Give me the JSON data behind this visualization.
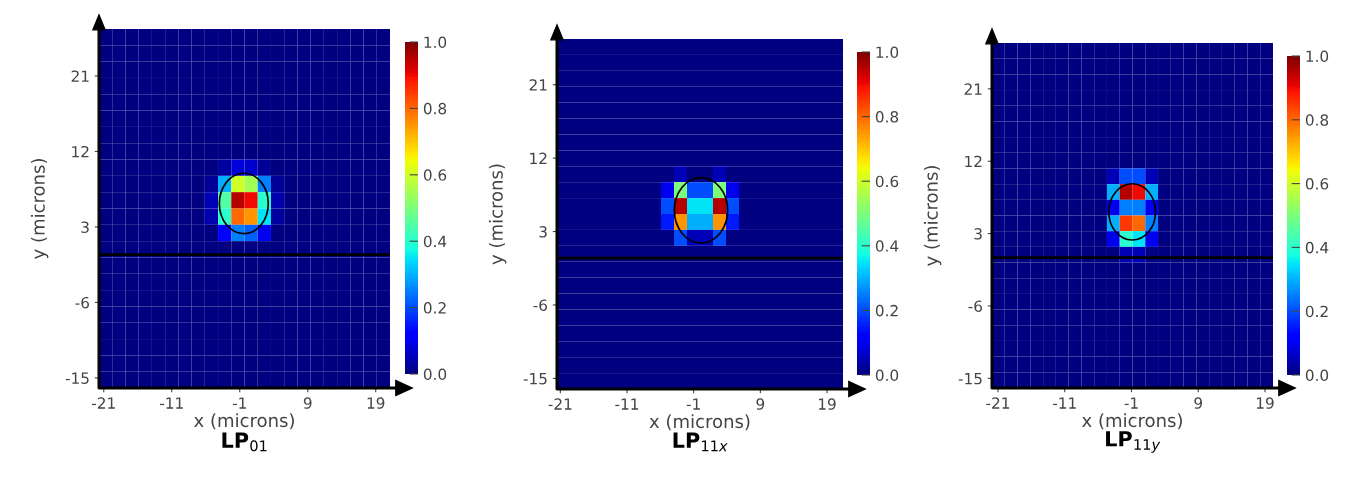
{
  "chart_data": [
    {
      "type": "heatmap",
      "title": "LP$_{01}$",
      "xlabel": "x (microns)",
      "ylabel": "y (microns)",
      "xlim": [
        -21.7,
        21.1
      ],
      "ylim": [
        -16.2,
        26.6
      ],
      "xticks": [
        -21,
        -11,
        -1,
        9,
        19
      ],
      "yticks": [
        -15,
        -6,
        3,
        12,
        21
      ],
      "clim": [
        0,
        1
      ],
      "cticks": [
        {
          "value": 0,
          "label": "0.0"
        },
        {
          "value": 0.2,
          "label": "0.2"
        },
        {
          "value": 0.4,
          "label": "0.4"
        },
        {
          "value": 0.6,
          "label": "0.6"
        },
        {
          "value": 0.8,
          "label": "0.8"
        },
        {
          "value": 1,
          "label": "1.0"
        }
      ],
      "ref_lines": [
        {
          "axis": "y",
          "value": -0.3,
          "color": "#000000"
        }
      ],
      "cells": [
        [
          0,
          0,
          0,
          0,
          0,
          0,
          0,
          0,
          0,
          0,
          0,
          0,
          0,
          0,
          0,
          0,
          0,
          0,
          0,
          0,
          0,
          0
        ],
        [
          0,
          0,
          0,
          0,
          0,
          0,
          0,
          0,
          0,
          0,
          0,
          0,
          0,
          0,
          0,
          0,
          0,
          0,
          0,
          0,
          0,
          0
        ],
        [
          0,
          0,
          0,
          0,
          0,
          0,
          0,
          0,
          0,
          0,
          0,
          0,
          0,
          0,
          0,
          0,
          0,
          0,
          0,
          0,
          0,
          0
        ],
        [
          0,
          0,
          0,
          0,
          0,
          0,
          0,
          0,
          0,
          0,
          0,
          0,
          0,
          0,
          0,
          0,
          0,
          0,
          0,
          0,
          0,
          0
        ],
        [
          0,
          0,
          0,
          0,
          0,
          0,
          0,
          0,
          0,
          0,
          0,
          0,
          0,
          0,
          0,
          0,
          0,
          0,
          0,
          0,
          0,
          0
        ],
        [
          0,
          0,
          0,
          0,
          0,
          0,
          0,
          0,
          0,
          0,
          0,
          0,
          0,
          0,
          0,
          0,
          0,
          0,
          0,
          0,
          0,
          0
        ],
        [
          0,
          0,
          0,
          0,
          0,
          0,
          0,
          0,
          0,
          0,
          0,
          0,
          0,
          0,
          0,
          0,
          0,
          0,
          0,
          0,
          0,
          0
        ],
        [
          0,
          0,
          0,
          0,
          0,
          0,
          0,
          0,
          0,
          0,
          0,
          0,
          0,
          0,
          0,
          0,
          0,
          0,
          0,
          0,
          0,
          0
        ],
        [
          0,
          0,
          0,
          0,
          0,
          0,
          0,
          0,
          0,
          0.03,
          0.08,
          0.07,
          0.02,
          0,
          0,
          0,
          0,
          0,
          0,
          0,
          0,
          0
        ],
        [
          0,
          0,
          0,
          0,
          0,
          0,
          0,
          0,
          0.02,
          0.3,
          0.6,
          0.55,
          0.25,
          0.02,
          0,
          0,
          0,
          0,
          0,
          0,
          0,
          0
        ],
        [
          0,
          0,
          0,
          0,
          0,
          0,
          0,
          0,
          0.05,
          0.45,
          0.95,
          0.9,
          0.4,
          0.04,
          0,
          0,
          0,
          0,
          0,
          0,
          0,
          0
        ],
        [
          0,
          0,
          0,
          0,
          0,
          0,
          0,
          0,
          0.04,
          0.4,
          0.8,
          0.75,
          0.35,
          0.03,
          0,
          0,
          0,
          0,
          0,
          0,
          0,
          0
        ],
        [
          0,
          0,
          0,
          0,
          0,
          0,
          0,
          0,
          0,
          0.12,
          0.25,
          0.22,
          0.1,
          0,
          0,
          0,
          0,
          0,
          0,
          0,
          0,
          0
        ],
        [
          0,
          0,
          0,
          0,
          0,
          0,
          0,
          0,
          0,
          0,
          0,
          0,
          0,
          0,
          0,
          0,
          0,
          0,
          0,
          0,
          0,
          0
        ],
        [
          0,
          0,
          0,
          0,
          0,
          0,
          0,
          0,
          0,
          0,
          0,
          0,
          0,
          0,
          0,
          0,
          0,
          0,
          0,
          0,
          0,
          0
        ],
        [
          0,
          0,
          0,
          0,
          0,
          0,
          0,
          0,
          0,
          0,
          0,
          0,
          0,
          0,
          0,
          0,
          0,
          0,
          0,
          0,
          0,
          0
        ],
        [
          0,
          0,
          0,
          0,
          0,
          0,
          0,
          0,
          0,
          0,
          0,
          0,
          0,
          0,
          0,
          0,
          0,
          0,
          0,
          0,
          0,
          0
        ],
        [
          0,
          0,
          0,
          0,
          0,
          0,
          0,
          0,
          0,
          0,
          0,
          0,
          0,
          0,
          0,
          0,
          0,
          0,
          0,
          0,
          0,
          0
        ],
        [
          0,
          0,
          0,
          0,
          0,
          0,
          0,
          0,
          0,
          0,
          0,
          0,
          0,
          0,
          0,
          0,
          0,
          0,
          0,
          0,
          0,
          0
        ],
        [
          0,
          0,
          0,
          0,
          0,
          0,
          0,
          0,
          0,
          0,
          0,
          0,
          0,
          0,
          0,
          0,
          0,
          0,
          0,
          0,
          0,
          0
        ],
        [
          0,
          0,
          0,
          0,
          0,
          0,
          0,
          0,
          0,
          0,
          0,
          0,
          0,
          0,
          0,
          0,
          0,
          0,
          0,
          0,
          0,
          0
        ],
        [
          0,
          0,
          0,
          0,
          0,
          0,
          0,
          0,
          0,
          0,
          0,
          0,
          0,
          0,
          0,
          0,
          0,
          0,
          0,
          0,
          0,
          0
        ]
      ]
    },
    {
      "type": "heatmap",
      "title": "LP$_{11x}$",
      "xlabel": "x (microns)",
      "ylabel": "y (microns)",
      "xlim": [
        -21.5,
        21.4
      ],
      "ylim": [
        -16.3,
        26.6
      ],
      "xticks": [
        -21,
        -11,
        -1,
        9,
        19
      ],
      "yticks": [
        -15,
        -6,
        3,
        12,
        21
      ],
      "clim": [
        0,
        1
      ],
      "cticks": [
        {
          "value": 0,
          "label": "0.0"
        },
        {
          "value": 0.2,
          "label": "0.2"
        },
        {
          "value": 0.4,
          "label": "0.4"
        },
        {
          "value": 0.6,
          "label": "0.6"
        },
        {
          "value": 0.8,
          "label": "0.8"
        },
        {
          "value": 1,
          "label": "1.0"
        }
      ],
      "ref_lines": [
        {
          "axis": "y",
          "value": -0.25,
          "color": "#000000"
        }
      ],
      "cells": [
        [
          0,
          0,
          0,
          0,
          0,
          0,
          0,
          0,
          0,
          0,
          0,
          0,
          0,
          0,
          0,
          0,
          0,
          0,
          0,
          0,
          0,
          0
        ],
        [
          0,
          0,
          0,
          0,
          0,
          0,
          0,
          0,
          0,
          0,
          0,
          0,
          0,
          0,
          0,
          0,
          0,
          0,
          0,
          0,
          0,
          0
        ],
        [
          0,
          0,
          0,
          0,
          0,
          0,
          0,
          0,
          0,
          0,
          0,
          0,
          0,
          0,
          0,
          0,
          0,
          0,
          0,
          0,
          0,
          0
        ],
        [
          0,
          0,
          0,
          0,
          0,
          0,
          0,
          0,
          0,
          0,
          0,
          0,
          0,
          0,
          0,
          0,
          0,
          0,
          0,
          0,
          0,
          0
        ],
        [
          0,
          0,
          0,
          0,
          0,
          0,
          0,
          0,
          0,
          0,
          0,
          0,
          0,
          0,
          0,
          0,
          0,
          0,
          0,
          0,
          0,
          0
        ],
        [
          0,
          0,
          0,
          0,
          0,
          0,
          0,
          0,
          0,
          0,
          0,
          0,
          0,
          0,
          0,
          0,
          0,
          0,
          0,
          0,
          0,
          0
        ],
        [
          0,
          0,
          0,
          0,
          0,
          0,
          0,
          0,
          0,
          0,
          0,
          0,
          0,
          0,
          0,
          0,
          0,
          0,
          0,
          0,
          0,
          0
        ],
        [
          0,
          0,
          0,
          0,
          0,
          0,
          0,
          0,
          0,
          0,
          0,
          0,
          0,
          0,
          0,
          0,
          0,
          0,
          0,
          0,
          0,
          0
        ],
        [
          0,
          0,
          0,
          0,
          0,
          0,
          0,
          0,
          0,
          0.05,
          0,
          0,
          0.05,
          0,
          0,
          0,
          0,
          0,
          0,
          0,
          0,
          0
        ],
        [
          0,
          0,
          0,
          0,
          0,
          0,
          0,
          0,
          0.1,
          0.5,
          0.2,
          0.2,
          0.5,
          0.1,
          0,
          0,
          0,
          0,
          0,
          0,
          0,
          0
        ],
        [
          0,
          0,
          0,
          0,
          0,
          0,
          0,
          0,
          0.2,
          0.95,
          0.35,
          0.35,
          0.95,
          0.2,
          0,
          0,
          0,
          0,
          0,
          0,
          0,
          0
        ],
        [
          0,
          0,
          0,
          0,
          0,
          0,
          0,
          0,
          0.15,
          0.75,
          0.3,
          0.3,
          0.75,
          0.15,
          0,
          0,
          0,
          0,
          0,
          0,
          0,
          0
        ],
        [
          0,
          0,
          0,
          0,
          0,
          0,
          0,
          0,
          0,
          0.2,
          0.05,
          0.05,
          0.2,
          0,
          0,
          0,
          0,
          0,
          0,
          0,
          0,
          0
        ],
        [
          0,
          0,
          0,
          0,
          0,
          0,
          0,
          0,
          0,
          0,
          0,
          0,
          0,
          0,
          0,
          0,
          0,
          0,
          0,
          0,
          0,
          0
        ],
        [
          0,
          0,
          0,
          0,
          0,
          0,
          0,
          0,
          0,
          0,
          0,
          0,
          0,
          0,
          0,
          0,
          0,
          0,
          0,
          0,
          0,
          0
        ],
        [
          0,
          0,
          0,
          0,
          0,
          0,
          0,
          0,
          0,
          0,
          0,
          0,
          0,
          0,
          0,
          0,
          0,
          0,
          0,
          0,
          0,
          0
        ],
        [
          0,
          0,
          0,
          0,
          0,
          0,
          0,
          0,
          0,
          0,
          0,
          0,
          0,
          0,
          0,
          0,
          0,
          0,
          0,
          0,
          0,
          0
        ],
        [
          0,
          0,
          0,
          0,
          0,
          0,
          0,
          0,
          0,
          0,
          0,
          0,
          0,
          0,
          0,
          0,
          0,
          0,
          0,
          0,
          0,
          0
        ],
        [
          0,
          0,
          0,
          0,
          0,
          0,
          0,
          0,
          0,
          0,
          0,
          0,
          0,
          0,
          0,
          0,
          0,
          0,
          0,
          0,
          0,
          0
        ],
        [
          0,
          0,
          0,
          0,
          0,
          0,
          0,
          0,
          0,
          0,
          0,
          0,
          0,
          0,
          0,
          0,
          0,
          0,
          0,
          0,
          0,
          0
        ],
        [
          0,
          0,
          0,
          0,
          0,
          0,
          0,
          0,
          0,
          0,
          0,
          0,
          0,
          0,
          0,
          0,
          0,
          0,
          0,
          0,
          0,
          0
        ],
        [
          0,
          0,
          0,
          0,
          0,
          0,
          0,
          0,
          0,
          0,
          0,
          0,
          0,
          0,
          0,
          0,
          0,
          0,
          0,
          0,
          0,
          0
        ]
      ]
    },
    {
      "type": "heatmap",
      "title": "LP$_{11y}$",
      "xlabel": "x (microns)",
      "ylabel": "y (microns)",
      "xlim": [
        -21.9,
        20.2
      ],
      "ylim": [
        -16.2,
        26.7
      ],
      "xticks": [
        -21,
        -11,
        -1,
        9,
        19
      ],
      "yticks": [
        -15,
        -6,
        3,
        12,
        21
      ],
      "clim": [
        0,
        1
      ],
      "cticks": [
        {
          "value": 0,
          "label": "0.0"
        },
        {
          "value": 0.2,
          "label": "0.2"
        },
        {
          "value": 0.4,
          "label": "0.4"
        },
        {
          "value": 0.6,
          "label": "0.6"
        },
        {
          "value": 0.8,
          "label": "0.8"
        },
        {
          "value": 1,
          "label": "1.0"
        }
      ],
      "ref_lines": [
        {
          "axis": "y",
          "value": 0,
          "color": "#000000"
        }
      ],
      "cells": [
        [
          0,
          0,
          0,
          0,
          0,
          0,
          0,
          0,
          0,
          0,
          0,
          0,
          0,
          0,
          0,
          0,
          0,
          0,
          0,
          0,
          0,
          0
        ],
        [
          0,
          0,
          0,
          0,
          0,
          0,
          0,
          0,
          0,
          0,
          0,
          0,
          0,
          0,
          0,
          0,
          0,
          0,
          0,
          0,
          0,
          0
        ],
        [
          0,
          0,
          0,
          0,
          0,
          0,
          0,
          0,
          0,
          0,
          0,
          0,
          0,
          0,
          0,
          0,
          0,
          0,
          0,
          0,
          0,
          0
        ],
        [
          0,
          0,
          0,
          0,
          0,
          0,
          0,
          0,
          0,
          0,
          0,
          0,
          0,
          0,
          0,
          0,
          0,
          0,
          0,
          0,
          0,
          0
        ],
        [
          0,
          0,
          0,
          0,
          0,
          0,
          0,
          0,
          0,
          0,
          0,
          0,
          0,
          0,
          0,
          0,
          0,
          0,
          0,
          0,
          0,
          0
        ],
        [
          0,
          0,
          0,
          0,
          0,
          0,
          0,
          0,
          0,
          0,
          0,
          0,
          0,
          0,
          0,
          0,
          0,
          0,
          0,
          0,
          0,
          0
        ],
        [
          0,
          0,
          0,
          0,
          0,
          0,
          0,
          0,
          0,
          0,
          0,
          0,
          0,
          0,
          0,
          0,
          0,
          0,
          0,
          0,
          0,
          0
        ],
        [
          0,
          0,
          0,
          0,
          0,
          0,
          0,
          0,
          0,
          0,
          0,
          0,
          0,
          0,
          0,
          0,
          0,
          0,
          0,
          0,
          0,
          0
        ],
        [
          0,
          0,
          0,
          0,
          0,
          0,
          0,
          0,
          0,
          0.05,
          0.2,
          0.2,
          0.05,
          0,
          0,
          0,
          0,
          0,
          0,
          0,
          0,
          0
        ],
        [
          0,
          0,
          0,
          0,
          0,
          0,
          0,
          0,
          0,
          0.3,
          0.95,
          0.9,
          0.3,
          0,
          0,
          0,
          0,
          0,
          0,
          0,
          0,
          0
        ],
        [
          0,
          0,
          0,
          0,
          0,
          0,
          0,
          0,
          0,
          0.1,
          0.25,
          0.25,
          0.1,
          0,
          0,
          0,
          0,
          0,
          0,
          0,
          0,
          0
        ],
        [
          0,
          0,
          0,
          0,
          0,
          0,
          0,
          0,
          0,
          0.3,
          0.85,
          0.8,
          0.25,
          0,
          0,
          0,
          0,
          0,
          0,
          0,
          0,
          0
        ],
        [
          0,
          0,
          0,
          0,
          0,
          0,
          0,
          0,
          0,
          0.1,
          0.4,
          0.35,
          0.1,
          0,
          0,
          0,
          0,
          0,
          0,
          0,
          0,
          0
        ],
        [
          0,
          0,
          0,
          0,
          0,
          0,
          0,
          0,
          0,
          0,
          0.05,
          0.05,
          0,
          0,
          0,
          0,
          0,
          0,
          0,
          0,
          0,
          0
        ],
        [
          0,
          0,
          0,
          0,
          0,
          0,
          0,
          0,
          0,
          0,
          0,
          0,
          0,
          0,
          0,
          0,
          0,
          0,
          0,
          0,
          0,
          0
        ],
        [
          0,
          0,
          0,
          0,
          0,
          0,
          0,
          0,
          0,
          0,
          0,
          0,
          0,
          0,
          0,
          0,
          0,
          0,
          0,
          0,
          0,
          0
        ],
        [
          0,
          0,
          0,
          0,
          0,
          0,
          0,
          0,
          0,
          0,
          0,
          0,
          0,
          0,
          0,
          0,
          0,
          0,
          0,
          0,
          0,
          0
        ],
        [
          0,
          0,
          0,
          0,
          0,
          0,
          0,
          0,
          0,
          0,
          0,
          0,
          0,
          0,
          0,
          0,
          0,
          0,
          0,
          0,
          0,
          0
        ],
        [
          0,
          0,
          0,
          0,
          0,
          0,
          0,
          0,
          0,
          0,
          0,
          0,
          0,
          0,
          0,
          0,
          0,
          0,
          0,
          0,
          0,
          0
        ],
        [
          0,
          0,
          0,
          0,
          0,
          0,
          0,
          0,
          0,
          0,
          0,
          0,
          0,
          0,
          0,
          0,
          0,
          0,
          0,
          0,
          0,
          0
        ],
        [
          0,
          0,
          0,
          0,
          0,
          0,
          0,
          0,
          0,
          0,
          0,
          0,
          0,
          0,
          0,
          0,
          0,
          0,
          0,
          0,
          0,
          0
        ],
        [
          0,
          0,
          0,
          0,
          0,
          0,
          0,
          0,
          0,
          0,
          0,
          0,
          0,
          0,
          0,
          0,
          0,
          0,
          0,
          0,
          0,
          0
        ]
      ]
    }
  ]
}
